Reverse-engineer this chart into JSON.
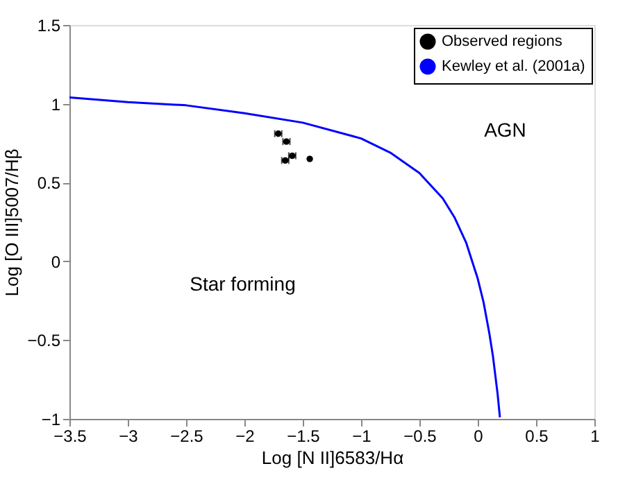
{
  "chart_data": {
    "type": "scatter",
    "xlabel": "Log [N II]6583/Hα",
    "ylabel": "Log [O III]5007/Hβ",
    "xlim": [
      -3.5,
      1
    ],
    "xticks": [
      -3.5,
      -3,
      -2.5,
      -2,
      -1.5,
      -1,
      -0.5,
      0,
      0.5,
      1
    ],
    "ylim": [
      -1,
      1.5
    ],
    "yticks": [
      -1,
      -0.5,
      0,
      0.5,
      1,
      1.5
    ],
    "grid": false,
    "legend": "top right",
    "annotations": [
      "AGN",
      "Star forming"
    ],
    "series": [
      {
        "name": "Observed regions",
        "marker": "circle",
        "color": "#000000",
        "x": [
          -1.71,
          -1.64,
          -1.59,
          -1.65,
          -1.44
        ],
        "values": [
          0.81,
          0.76,
          0.67,
          0.64,
          0.65
        ],
        "xerrors": [
          0.03,
          0.03,
          0.03,
          0.03,
          null
        ]
      },
      {
        "name": "Kewley et al. (2001a)",
        "type": "line",
        "color": "#0000ff",
        "line_style": "solid",
        "marker": "none",
        "x": [
          -3.5,
          -3,
          -2.5,
          -2,
          -1.5,
          -1,
          -0.75,
          -0.5,
          -0.3,
          -0.2,
          -0.1,
          0,
          0.05,
          0.1,
          0.13,
          0.15,
          0.17,
          0.19
        ],
        "values": [
          1.04,
          1.01,
          0.99,
          0.94,
          0.88,
          0.78,
          0.69,
          0.56,
          0.4,
          0.28,
          0.12,
          -0.11,
          -0.26,
          -0.46,
          -0.6,
          -0.72,
          -0.84,
          -0.99
        ]
      }
    ]
  }
}
